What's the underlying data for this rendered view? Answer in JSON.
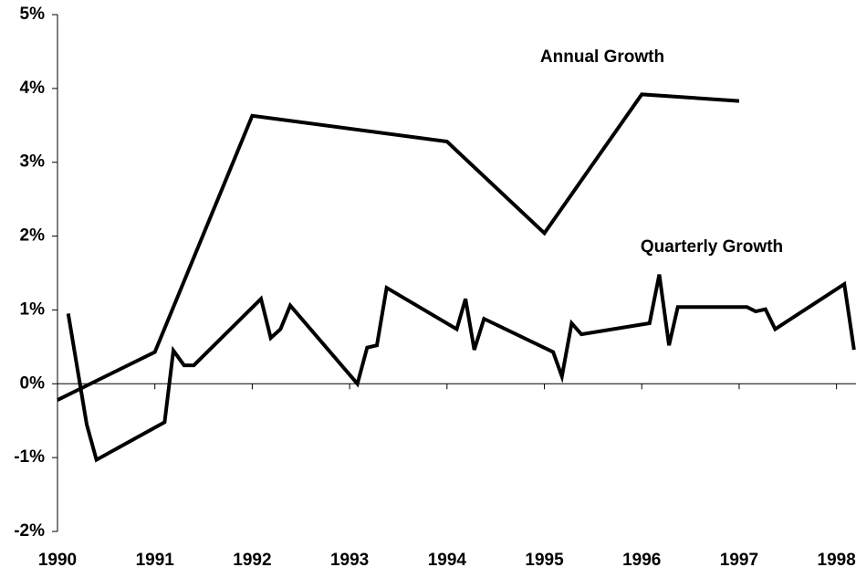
{
  "chart_data": {
    "type": "line",
    "annotations": [
      "Annual Growth",
      "Quarterly Growth"
    ],
    "series": [
      {
        "name": "Annual Growth",
        "color": "#000000",
        "x": [
          1990,
          1991,
          1992,
          1994,
          1995,
          1996,
          1997
        ],
        "values": [
          -0.22,
          0.43,
          3.63,
          3.28,
          2.04,
          3.92,
          3.83
        ]
      },
      {
        "name": "Quarterly Growth",
        "color": "#000000",
        "x": [
          1990.11,
          1990.3,
          1990.4,
          1991.1,
          1991.19,
          1991.3,
          1991.4,
          1992.09,
          1992.19,
          1992.29,
          1992.39,
          1993.08,
          1993.18,
          1993.28,
          1993.38,
          1994.1,
          1994.19,
          1994.28,
          1994.38,
          1995.09,
          1995.18,
          1995.28,
          1995.38,
          1996.08,
          1996.18,
          1996.28,
          1996.37,
          1997.08,
          1997.17,
          1997.27,
          1997.37,
          1998.08,
          1998.18
        ],
        "values": [
          0.95,
          -0.55,
          -1.03,
          -0.52,
          0.45,
          0.25,
          0.25,
          1.15,
          0.62,
          0.74,
          1.06,
          0.0,
          0.49,
          0.52,
          1.3,
          0.74,
          1.15,
          0.46,
          0.88,
          0.43,
          0.1,
          0.82,
          0.67,
          0.82,
          1.48,
          0.52,
          1.04,
          1.04,
          0.98,
          1.01,
          0.74,
          1.35,
          0.46
        ]
      }
    ],
    "xlim": [
      1990,
      1998.2
    ],
    "xticks": [
      1990,
      1991,
      1992,
      1993,
      1994,
      1995,
      1996,
      1997,
      1998
    ],
    "ylim": [
      -2,
      5
    ],
    "yticks": [
      {
        "value": -2,
        "label": "-2%"
      },
      {
        "value": -1,
        "label": "-1%"
      },
      {
        "value": 0,
        "label": "0%"
      },
      {
        "value": 1,
        "label": "1%"
      },
      {
        "value": 2,
        "label": "2%"
      },
      {
        "value": 3,
        "label": "3%"
      },
      {
        "value": 4,
        "label": "4%"
      },
      {
        "value": 5,
        "label": "5%"
      }
    ],
    "grid": false
  }
}
